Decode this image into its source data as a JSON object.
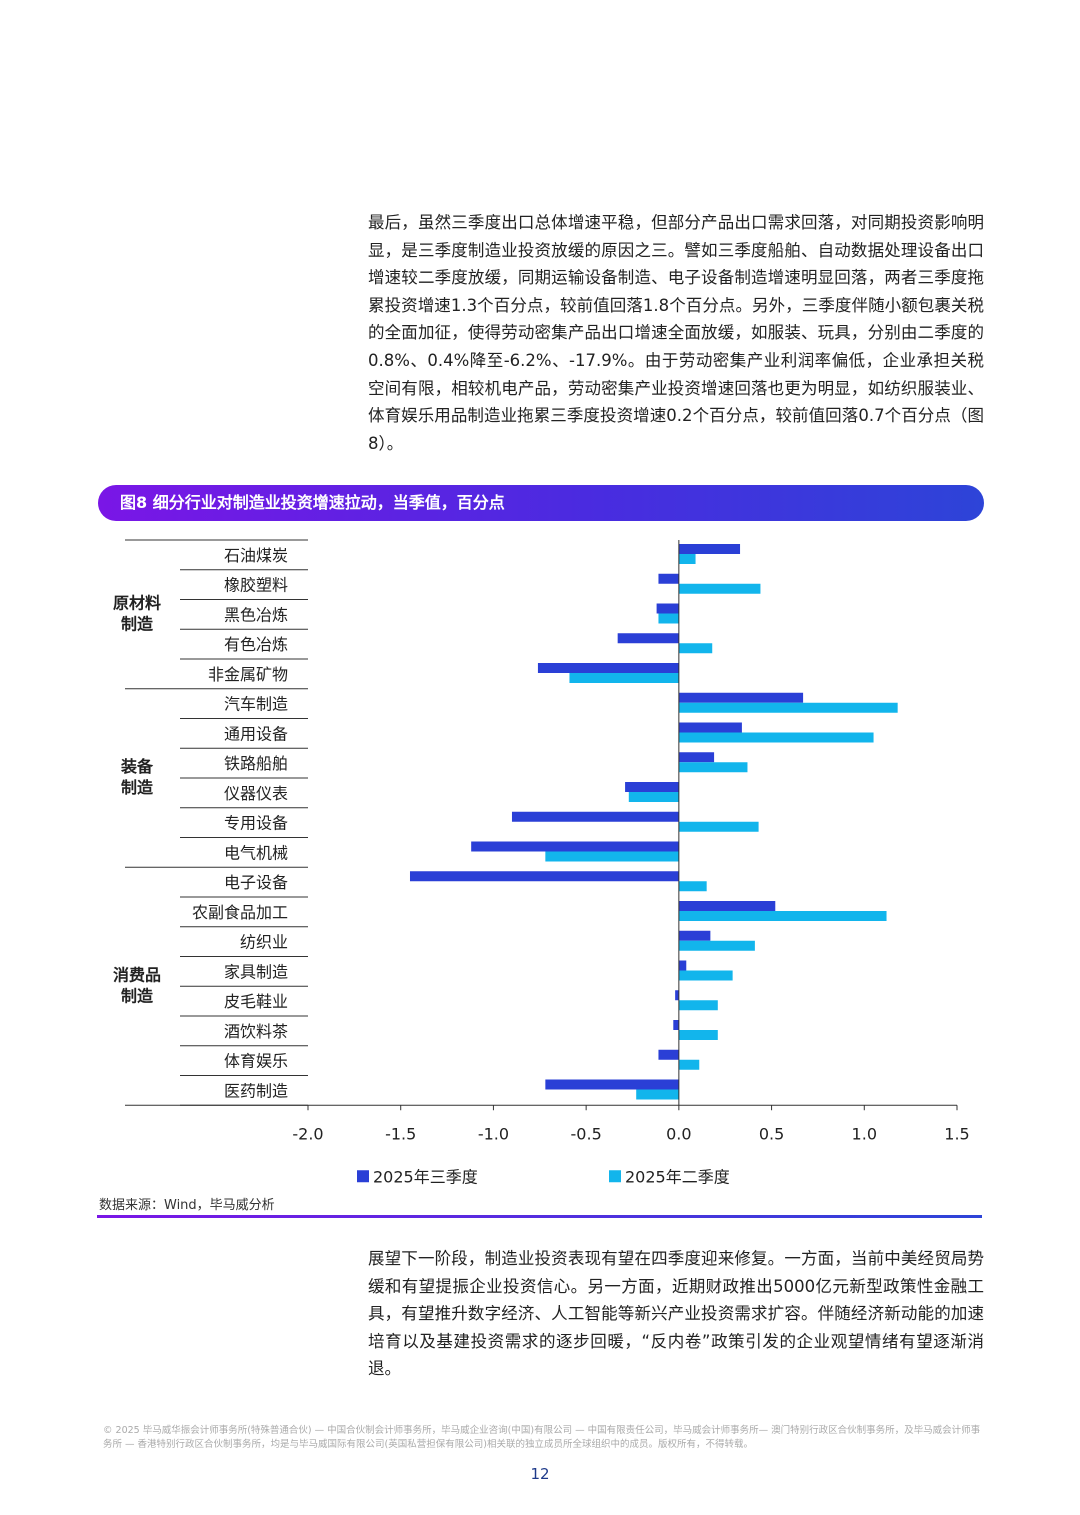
{
  "paragraphs": {
    "p1": "最后，虽然三季度出口总体增速平稳，但部分产品出口需求回落，对同期投资影响明显，是三季度制造业投资放缓的原因之三。譬如三季度船舶、自动数据处理设备出口增速较二季度放缓，同期运输设备制造、电子设备制造增速明显回落，两者三季度拖累投资增速1.3个百分点，较前值回落1.8个百分点。另外，三季度伴随小额包裹关税的全面加征，使得劳动密集产品出口增速全面放缓，如服装、玩具，分别由二季度的0.8%、0.4%降至-6.2%、-17.9%。由于劳动密集产业利润率偏低，企业承担关税空间有限，相较机电产品，劳动密集产业投资增速回落也更为明显，如纺织服装业、体育娱乐用品制造业拖累三季度投资增速0.2个百分点，较前值回落0.7个百分点（图8）。",
    "p2": "展望下一阶段，制造业投资表现有望在四季度迎来修复。一方面，当前中美经贸局势缓和有望提振企业投资信心。另一方面，近期财政推出5000亿元新型政策性金融工具，有望推升数字经济、人工智能等新兴产业投资需求扩容。伴随经济新动能的加速培育以及基建投资需求的逐步回暖，“反内卷”政策引发的企业观望情绪有望逐渐消退。"
  },
  "figure_title": "图8 细分行业对制造业投资增速拉动，当季值，百分点",
  "source": "数据来源：Wind，毕马威分析",
  "footer": "© 2025 毕马威华振会计师事务所(特殊普通合伙) — 中国合伙制会计师事务所，毕马威企业咨询(中国)有限公司 — 中国有限责任公司，毕马威会计师事务所— 澳门特别行政区合伙制事务所，及毕马威会计师事务所 — 香港特别行政区合伙制事务所，均是与毕马威国际有限公司(英国私营担保有限公司)相关联的独立成员所全球组织中的成员。版权所有，不得转载。",
  "page_number": "12",
  "colors": {
    "q3": "#2a3fd6",
    "q2": "#12b5ec"
  },
  "chart_data": {
    "type": "bar",
    "orientation": "horizontal",
    "title": "图8 细分行业对制造业投资增速拉动，当季值，百分点",
    "categories": [
      "石油煤炭",
      "橡胶塑料",
      "黑色冶炼",
      "有色冶炼",
      "非金属矿物",
      "汽车制造",
      "通用设备",
      "铁路船舶",
      "仪器仪表",
      "专用设备",
      "电气机械",
      "电子设备",
      "农副食品加工",
      "纺织业",
      "家具制造",
      "皮毛鞋业",
      "酒饮料茶",
      "体育娱乐",
      "医药制造"
    ],
    "groups": [
      {
        "label": "原材料\n制造",
        "label_lines": [
          "原材料",
          "制造"
        ],
        "count": 5
      },
      {
        "label": "装备\n制造",
        "label_lines": [
          "装备",
          "制造"
        ],
        "count": 6
      },
      {
        "label": "消费品\n制造",
        "label_lines": [
          "消费品",
          "制造"
        ],
        "count": 8
      }
    ],
    "series": [
      {
        "name": "2025年三季度",
        "values": [
          0.33,
          -0.11,
          -0.12,
          -0.33,
          -0.76,
          0.67,
          0.34,
          0.19,
          -0.29,
          -0.9,
          -1.12,
          -1.45,
          0.52,
          0.17,
          0.04,
          -0.02,
          -0.03,
          -0.11,
          -0.72
        ]
      },
      {
        "name": "2025年二季度",
        "values": [
          0.09,
          0.44,
          -0.11,
          0.18,
          -0.59,
          1.18,
          1.05,
          0.37,
          -0.27,
          0.43,
          -0.72,
          0.15,
          1.12,
          0.41,
          0.29,
          0.21,
          0.21,
          0.11,
          -0.23
        ]
      }
    ],
    "xlim": [
      -2.0,
      1.5
    ],
    "xticks": [
      "-2.0",
      "-1.5",
      "-1.0",
      "-0.5",
      "0.0",
      "0.5",
      "1.0",
      "1.5"
    ],
    "legend": "bottom",
    "grid": false
  }
}
